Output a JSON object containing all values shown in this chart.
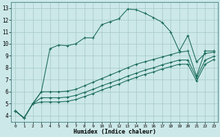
{
  "xlabel": "Humidex (Indice chaleur)",
  "ylabel": "",
  "bg_color": "#cce8e8",
  "grid_color": "#aacccc",
  "line_color": "#1a6b5a",
  "xlim": [
    -0.5,
    23.5
  ],
  "ylim": [
    3.5,
    13.5
  ],
  "yticks": [
    4,
    5,
    6,
    7,
    8,
    9,
    10,
    11,
    12,
    13
  ],
  "xtick_labels": [
    "0",
    "1",
    "2",
    "3",
    "4",
    "5",
    "6",
    "7",
    "8",
    "9",
    "10",
    "11",
    "12",
    "13",
    "14",
    "15",
    "16",
    "17",
    "18",
    "19",
    "20",
    "21",
    "22",
    "23"
  ],
  "xtick_pos": [
    0,
    1,
    2,
    3,
    4,
    5,
    6,
    7,
    8,
    9,
    10,
    11,
    12,
    13,
    14,
    15,
    16,
    17,
    18,
    19,
    20,
    21,
    22,
    23
  ],
  "line1_x": [
    0,
    1,
    2,
    3,
    4,
    5,
    6,
    7,
    8,
    9,
    10,
    11,
    12,
    13,
    14,
    15,
    16,
    17,
    18,
    19,
    20,
    21,
    22,
    23
  ],
  "line1_y": [
    4.4,
    3.8,
    5.0,
    6.0,
    9.6,
    9.9,
    9.85,
    10.0,
    10.5,
    10.5,
    11.6,
    11.85,
    12.1,
    12.9,
    12.85,
    12.55,
    12.2,
    11.8,
    11.0,
    9.4,
    10.7,
    8.5,
    9.2,
    9.3
  ],
  "line2_x": [
    0,
    1,
    2,
    3,
    4,
    5,
    6,
    7,
    8,
    9,
    10,
    11,
    12,
    13,
    14,
    15,
    16,
    17,
    18,
    19,
    20,
    21,
    22,
    23
  ],
  "line2_y": [
    4.4,
    3.8,
    5.0,
    6.0,
    6.0,
    6.0,
    6.05,
    6.2,
    6.5,
    6.8,
    7.1,
    7.4,
    7.7,
    8.0,
    8.3,
    8.5,
    8.7,
    8.9,
    9.1,
    9.3,
    9.4,
    7.3,
    9.4,
    9.4
  ],
  "line3_x": [
    0,
    1,
    2,
    3,
    4,
    5,
    6,
    7,
    8,
    9,
    10,
    11,
    12,
    13,
    14,
    15,
    16,
    17,
    18,
    19,
    20,
    21,
    22,
    23
  ],
  "line3_y": [
    4.4,
    3.8,
    5.0,
    5.5,
    5.5,
    5.5,
    5.55,
    5.7,
    5.95,
    6.2,
    6.5,
    6.75,
    7.0,
    7.3,
    7.55,
    7.8,
    8.0,
    8.25,
    8.45,
    8.65,
    8.65,
    7.15,
    8.65,
    8.95
  ],
  "line4_x": [
    0,
    1,
    2,
    3,
    4,
    5,
    6,
    7,
    8,
    9,
    10,
    11,
    12,
    13,
    14,
    15,
    16,
    17,
    18,
    19,
    20,
    21,
    22,
    23
  ],
  "line4_y": [
    4.4,
    3.8,
    5.0,
    5.15,
    5.15,
    5.15,
    5.2,
    5.35,
    5.6,
    5.85,
    6.15,
    6.4,
    6.65,
    6.95,
    7.2,
    7.45,
    7.65,
    7.9,
    8.1,
    8.3,
    8.3,
    6.9,
    8.3,
    8.7
  ]
}
